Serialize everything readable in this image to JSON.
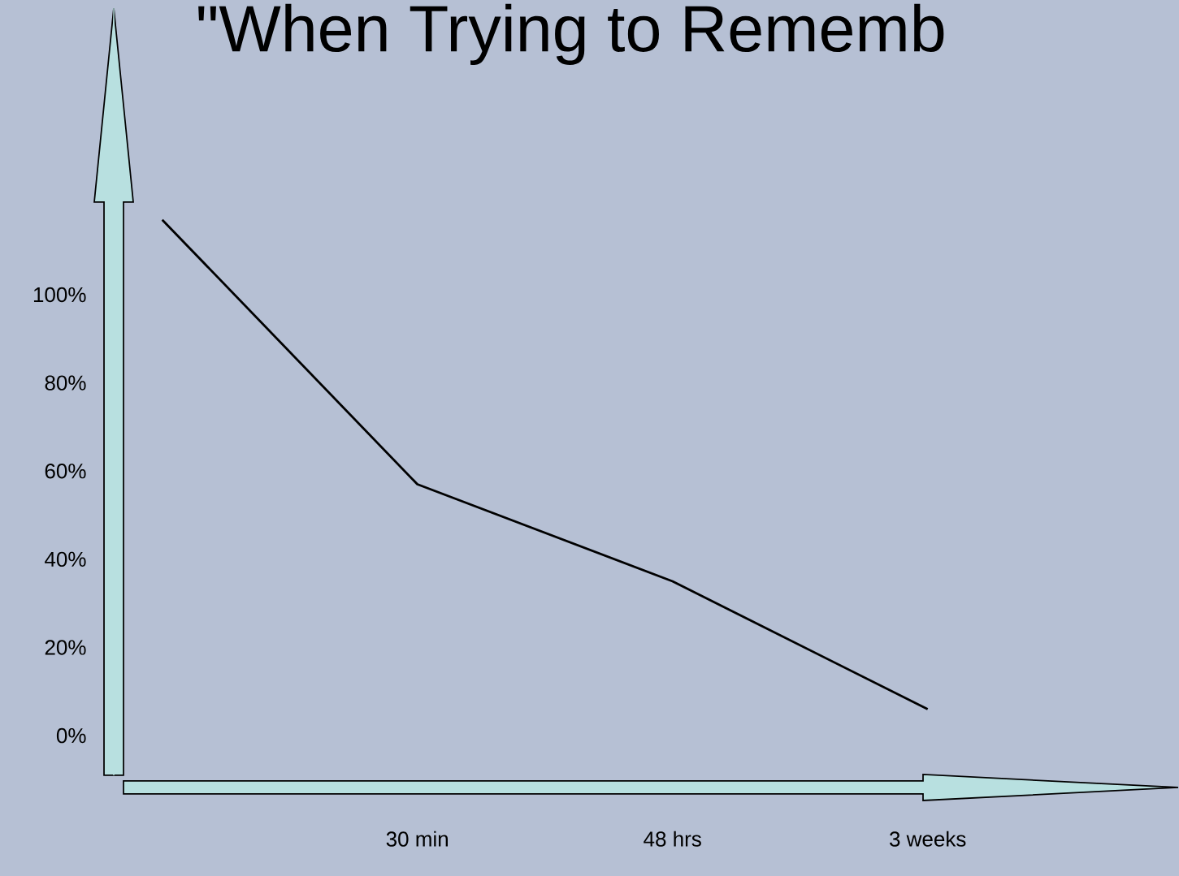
{
  "chart_data": {
    "type": "line",
    "title": "\"When Trying to Rememb",
    "categories": [
      null,
      "30 min",
      "48 hrs",
      "3 weeks"
    ],
    "series": [
      {
        "color": "#000000",
        "values": [
          117,
          57,
          35,
          6
        ]
      }
    ],
    "ylim": [
      -9,
      165
    ],
    "yticks": [
      {
        "value": 0,
        "label": "0%"
      },
      {
        "value": 20,
        "label": "20%"
      },
      {
        "value": 40,
        "label": "40%"
      },
      {
        "value": 60,
        "label": "60%"
      },
      {
        "value": 80,
        "label": "80%"
      },
      {
        "value": 100,
        "label": "100%"
      }
    ],
    "marker": "none",
    "line_style": "solid"
  }
}
